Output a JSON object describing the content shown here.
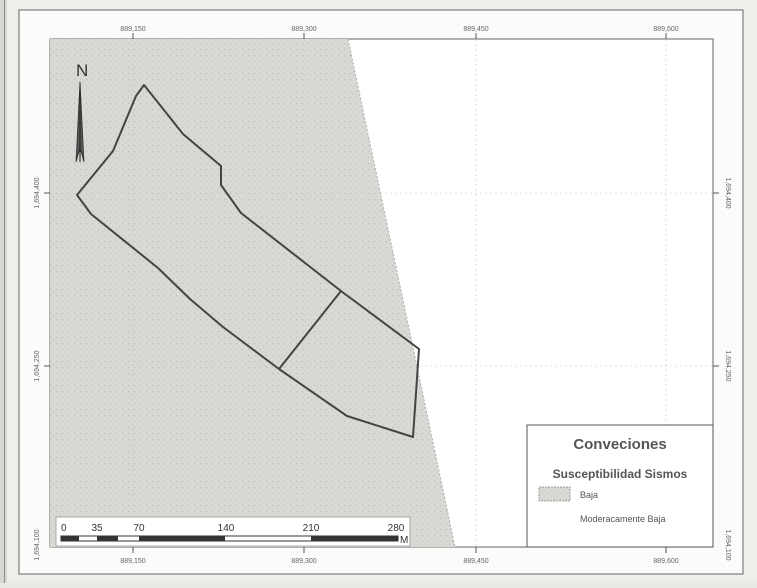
{
  "map": {
    "north_label": "N",
    "coords": {
      "top_x": [
        "889,150",
        "889,300",
        "889,450",
        "889,600"
      ],
      "bottom_x": [
        "889,150",
        "889,300",
        "889,450",
        "889,600"
      ],
      "left_y": [
        "1,694,400",
        "1,694,250",
        "1,694,100"
      ],
      "right_y": [
        "1,694,400",
        "1,694,250",
        "1,694,100"
      ]
    },
    "scale_bar": {
      "labels": [
        "0",
        "35",
        "70",
        "140",
        "210",
        "280"
      ],
      "unit": "M"
    },
    "legend": {
      "title": "Conveciones",
      "subtitle": "Susceptibilidad Sismos",
      "items": [
        {
          "label": "Baja",
          "swatch": "#d6d6d2"
        },
        {
          "label": "Moderacamente Baja",
          "swatch": "#ffffff"
        }
      ]
    },
    "colors": {
      "zone_baja": "#d6d6d2",
      "zone_moderada": "#ffffff",
      "boundary": "#444444"
    }
  }
}
